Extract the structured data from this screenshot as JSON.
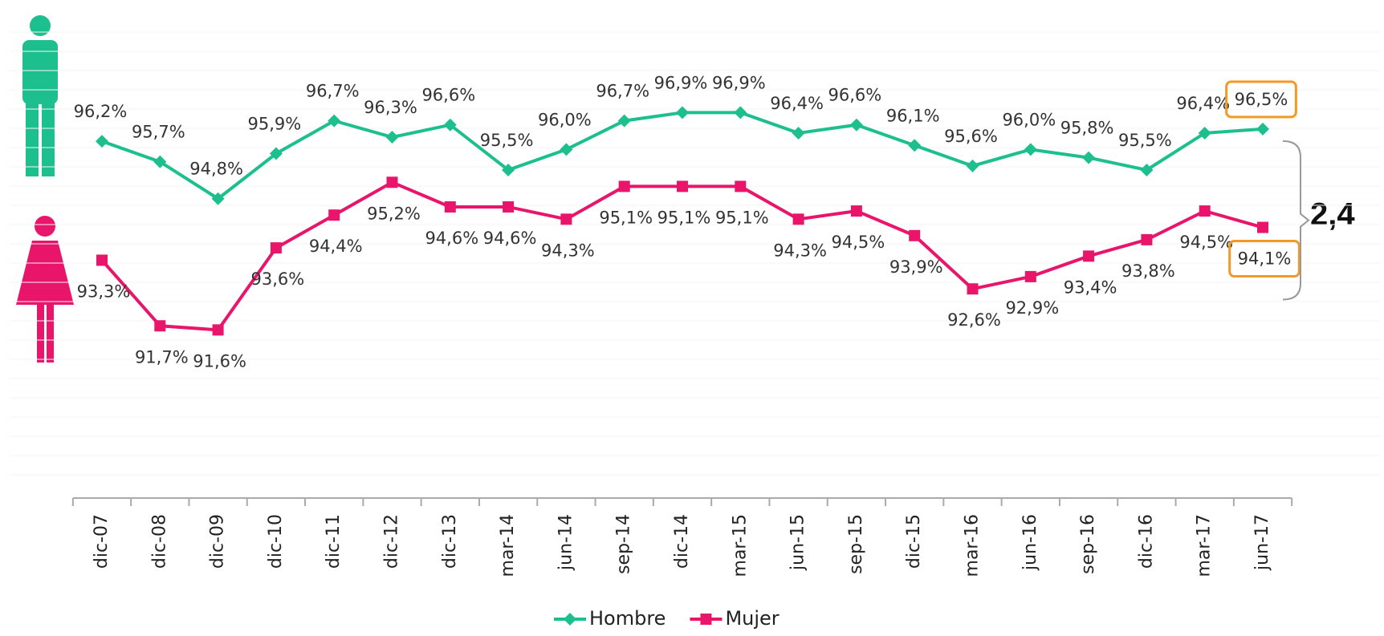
{
  "chart_data": {
    "type": "line",
    "categories": [
      "dic-07",
      "dic-08",
      "dic-09",
      "dic-10",
      "dic-11",
      "dic-12",
      "dic-13",
      "mar-14",
      "jun-14",
      "sep-14",
      "dic-14",
      "mar-15",
      "jun-15",
      "sep-15",
      "dic-15",
      "mar-16",
      "jun-16",
      "sep-16",
      "dic-16",
      "mar-17",
      "jun-17"
    ],
    "series": [
      {
        "name": "Hombre",
        "color": "#1dbf8e",
        "marker": "diamond",
        "values": [
          96.2,
          95.7,
          94.8,
          95.9,
          96.7,
          96.3,
          96.6,
          95.5,
          96.0,
          96.7,
          96.9,
          96.9,
          96.4,
          96.6,
          96.1,
          95.6,
          96.0,
          95.8,
          95.5,
          96.4,
          96.5
        ],
        "value_labels": [
          "96,2%",
          "95,7%",
          "94,8%",
          "95,9%",
          "96,7%",
          "96,3%",
          "96,6%",
          "95,5%",
          "96,0%",
          "96,7%",
          "96,9%",
          "96,9%",
          "96,4%",
          "96,6%",
          "96,1%",
          "95,6%",
          "96,0%",
          "95,8%",
          "95,5%",
          "96,4%",
          "96,5%"
        ]
      },
      {
        "name": "Mujer",
        "color": "#e8156b",
        "marker": "square",
        "values": [
          93.3,
          91.7,
          91.6,
          93.6,
          94.4,
          95.2,
          94.6,
          94.6,
          94.3,
          95.1,
          95.1,
          95.1,
          94.3,
          94.5,
          93.9,
          92.6,
          92.9,
          93.4,
          93.8,
          94.5,
          94.1
        ],
        "value_labels": [
          "93,3%",
          "91,7%",
          "91,6%",
          "93,6%",
          "94,4%",
          "95,2%",
          "94,6%",
          "94,6%",
          "94,3%",
          "95,1%",
          "95,1%",
          "95,1%",
          "94,3%",
          "94,5%",
          "93,9%",
          "92,6%",
          "92,9%",
          "93,4%",
          "93,8%",
          "94,5%",
          "94,1%"
        ]
      }
    ],
    "ylim": [
      87.5,
      99
    ],
    "annotation": "2,4",
    "legend": "bottom"
  }
}
